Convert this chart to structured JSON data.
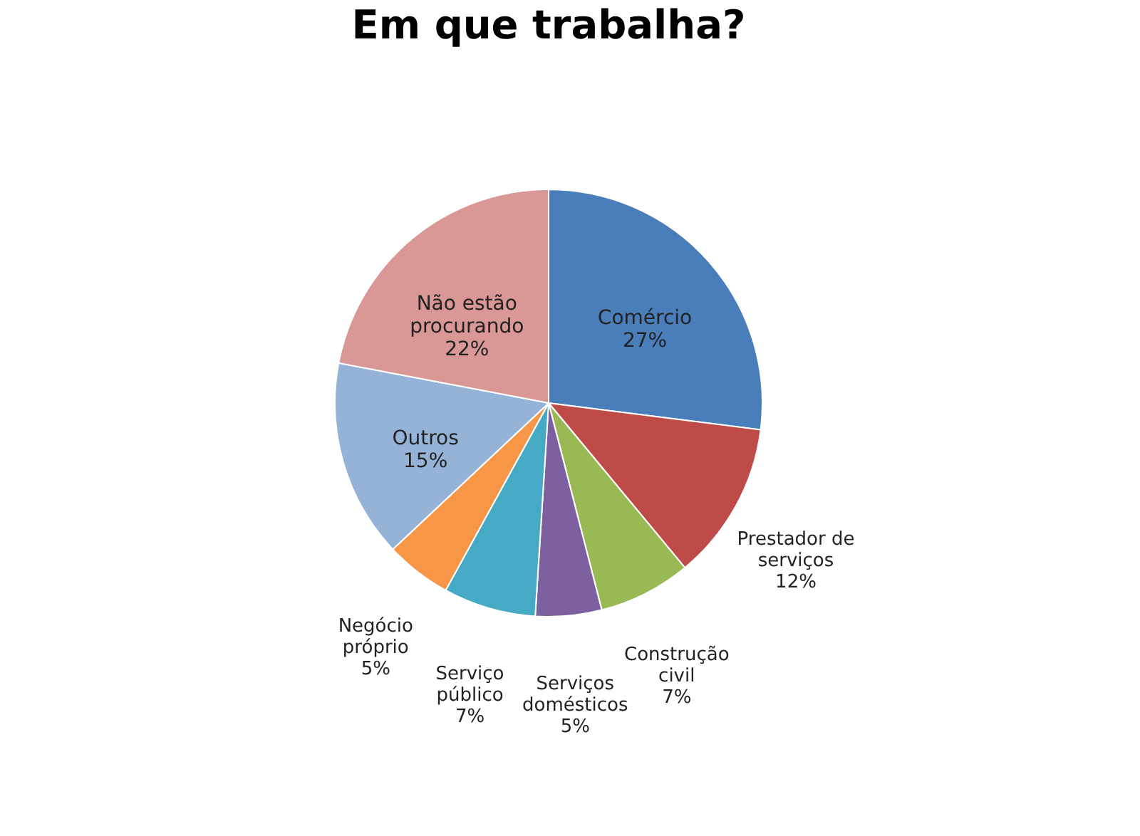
{
  "chart_data": {
    "type": "pie",
    "title": "Em que trabalha?",
    "categories": [
      "Comércio",
      "Prestador de serviços",
      "Construção civil",
      "Serviços domésticos",
      "Serviço público",
      "Negócio próprio",
      "Outros",
      "Não estão procurando"
    ],
    "values": [
      27,
      12,
      7,
      5,
      7,
      5,
      15,
      22
    ],
    "colors": [
      "#4a7ebb",
      "#be4b48",
      "#98b954",
      "#7d60a0",
      "#46aac5",
      "#f79646",
      "#95b3d7",
      "#d99795"
    ],
    "value_labels": [
      "27%",
      "12%",
      "7%",
      "5%",
      "7%",
      "5%",
      "15%",
      "22%"
    ],
    "legend": false
  }
}
